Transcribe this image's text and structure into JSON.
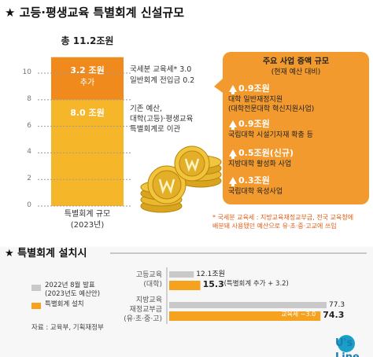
{
  "title": "★ 고등·평생교육 특별회계 신설규모",
  "chart_data": [
    {
      "type": "stacked_bar",
      "total_label": "총 11.2조원",
      "categories": [
        "특별회계 규모\n(2023년)"
      ],
      "series": [
        {
          "color": "#f6b62a",
          "values": [
            8.0
          ],
          "value_labels": [
            "8.0 조원"
          ]
        },
        {
          "name": "추가",
          "color": "#f08a1c",
          "values": [
            3.2
          ],
          "value_labels": [
            "3.2 조원"
          ]
        }
      ],
      "ylim": [
        0,
        11.6
      ],
      "yticks": [
        0,
        2,
        4,
        6,
        8,
        10
      ],
      "grid": true
    },
    {
      "type": "hbar",
      "title": "★ 특별회계 설치시",
      "categories": [
        "고등교육\n(대학)",
        "지방교육\n재정교부금\n(유·초·중·고)"
      ],
      "series": [
        {
          "name": "2022년 8월 발표\n(2023년도 예산안)",
          "color": "#c9c9c9",
          "values": [
            12.1,
            77.3
          ],
          "value_labels": [
            "12.1조원",
            "77.3"
          ]
        },
        {
          "name": "특별회계 설치",
          "color": "#f5a21f",
          "values": [
            15.3,
            74.3
          ],
          "value_labels": [
            "15.3",
            "74.3"
          ]
        }
      ],
      "annotations": [
        "(특별회계 추가 + 3.2)",
        "교육세 −3.0"
      ],
      "xlim": [
        0,
        80
      ]
    }
  ],
  "notes": [
    "국세분 교육세* 3.0",
    "일반회계 전입금 0.2",
    "기존 예산,\n대학(고등)·평생교육\n특별회계로 이관"
  ],
  "callout": {
    "title": "주요 사업 증액 규모",
    "subtitle": "(현재 예산 대비)",
    "items": [
      {
        "amount": "0.9조원",
        "desc": "대학 일반재정지원\n(대학전문대학 혁신지원사업)"
      },
      {
        "amount": "0.9조원",
        "desc": "국립대학 시설기자재 확충 등"
      },
      {
        "amount": "0.5조원(신규)",
        "desc": "지방대학 활성화 사업"
      },
      {
        "amount": "0.3조원",
        "desc": "국립대학 육성사업"
      }
    ]
  },
  "footnote": "* 국세분 교육세 : 지방교육재정교부금, 전국 교육청에\n배분돼 사용됐던 예산으로 유·초·중·고교에 쓰임",
  "source": "자료 : 교육부, 기획재정부",
  "logo": "U's Line"
}
